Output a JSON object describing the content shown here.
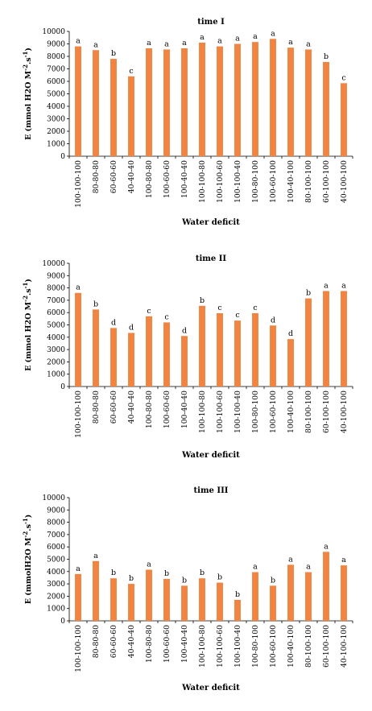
{
  "figure": {
    "bar_color": "#F08440",
    "axis_color": "#000000"
  },
  "chart_data": [
    {
      "type": "bar",
      "title": "time I",
      "xlabel": "Water deficit",
      "ylabel": "E (mmol H2O M-2.s-1)",
      "ylabel_parts": {
        "main": "E (mmol H2O M",
        "sup1": "-2",
        "mid": ".s",
        "sup2": "-1",
        "end": ")"
      },
      "ylim": [
        0,
        10000
      ],
      "yticks": [
        0,
        1000,
        2000,
        3000,
        4000,
        5000,
        6000,
        7000,
        8000,
        9000,
        10000
      ],
      "grid": false,
      "categories": [
        "100-100-100",
        "80-80-80",
        "60-60-60",
        "40-40-40",
        "100-80-80",
        "100-60-60",
        "100-40-40",
        "100-100-80",
        "100-100-60",
        "100-100-40",
        "100-80-100",
        "100-60-100",
        "100-40-100",
        "80-100-100",
        "60-100-100",
        "40-100-100"
      ],
      "values": [
        8800,
        8500,
        7800,
        6400,
        8650,
        8550,
        8650,
        9100,
        8800,
        9000,
        9150,
        9400,
        8700,
        8550,
        7550,
        5850
      ],
      "letters": [
        "a",
        "a",
        "b",
        "c",
        "a",
        "a",
        "a",
        "a",
        "a",
        "a",
        "a",
        "a",
        "a",
        "a",
        "b",
        "c"
      ]
    },
    {
      "type": "bar",
      "title": "time II",
      "xlabel": "Water deficit",
      "ylabel": "E (mmol H2O M-2.s-1)",
      "ylabel_parts": {
        "main": "E (mmol H2O M",
        "sup1": "-2",
        "mid": ".s",
        "sup2": "-1",
        "end": ")"
      },
      "ylim": [
        0,
        10000
      ],
      "yticks": [
        0,
        1000,
        2000,
        3000,
        4000,
        5000,
        6000,
        7000,
        8000,
        9000,
        10000
      ],
      "grid": false,
      "categories": [
        "100-100-100",
        "80-80-80",
        "60-60-60",
        "40-40-40",
        "100-80-80",
        "100-60-60",
        "100-40-40",
        "100-100-80",
        "100-100-60",
        "100-100-40",
        "100-80-100",
        "100-60-100",
        "100-40-100",
        "80-100-100",
        "60-100-100",
        "40-100-100"
      ],
      "values": [
        7600,
        6250,
        4750,
        4350,
        5700,
        5200,
        4100,
        6550,
        5950,
        5350,
        5950,
        4950,
        3850,
        7150,
        7750,
        7750
      ],
      "letters": [
        "a",
        "b",
        "d",
        "d",
        "c",
        "c",
        "d",
        "b",
        "c",
        "c",
        "c",
        "d",
        "d",
        "b",
        "a",
        "a"
      ]
    },
    {
      "type": "bar",
      "title": "time III",
      "xlabel": "Water deficit",
      "ylabel": "E (mmolH2O M-2.s-1)",
      "ylabel_parts": {
        "main": "E (mmolH2O M",
        "sup1": "-2",
        "mid": ".s",
        "sup2": "-1",
        "end": ")"
      },
      "ylim": [
        0,
        10000
      ],
      "yticks": [
        0,
        1000,
        2000,
        3000,
        4000,
        5000,
        6000,
        7000,
        8000,
        9000,
        10000
      ],
      "grid": false,
      "categories": [
        "100-100-100",
        "80-80-80",
        "60-60-60",
        "40-40-40",
        "100-80-80",
        "100-60-60",
        "100-40-40",
        "100-100-80",
        "100-100-60",
        "100-100-40",
        "100-80-100",
        "100-60-100",
        "100-40-100",
        "80-100-100",
        "60-100-100",
        "40-100-100"
      ],
      "values": [
        3800,
        4850,
        3450,
        3000,
        4150,
        3400,
        2850,
        3450,
        3100,
        1700,
        3950,
        2850,
        4550,
        3950,
        5600,
        4500
      ],
      "letters": [
        "a",
        "a",
        "b",
        "b",
        "a",
        "b",
        "b",
        "b",
        "b",
        "b",
        "a",
        "b",
        "a",
        "a",
        "a",
        "a"
      ]
    }
  ]
}
